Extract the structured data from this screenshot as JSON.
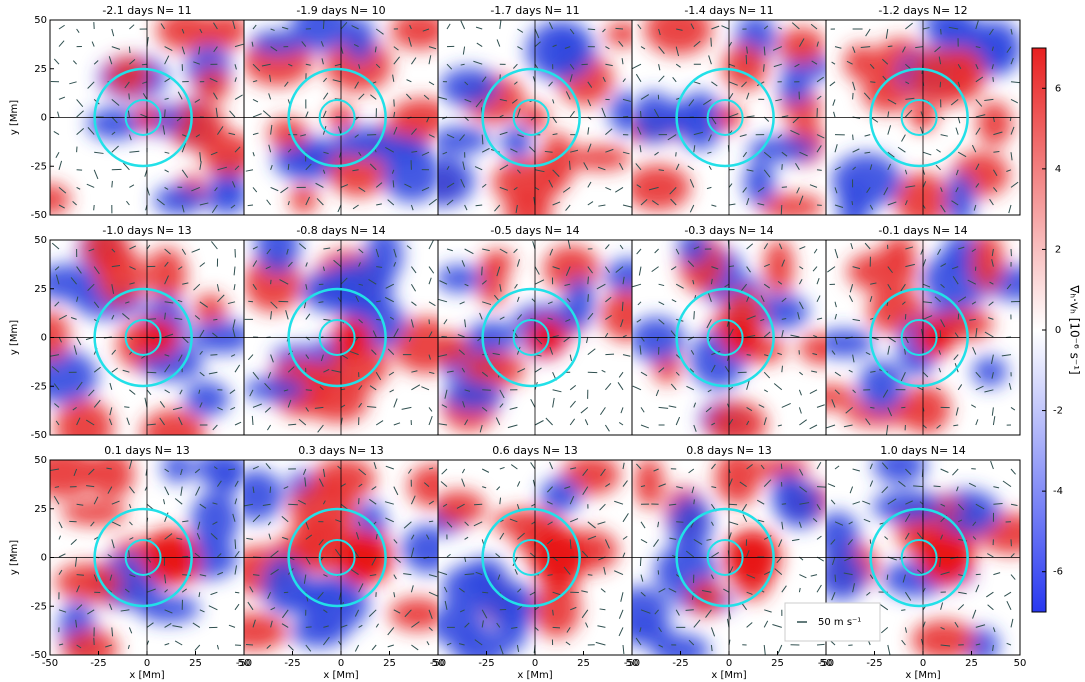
{
  "chart_data": {
    "type": "heatmap",
    "panels": [
      {
        "title": "-2.1 days  N= 11"
      },
      {
        "title": "-1.9 days  N= 10"
      },
      {
        "title": "-1.7 days  N= 11"
      },
      {
        "title": "-1.4 days  N= 11"
      },
      {
        "title": "-1.2 days  N= 12"
      },
      {
        "title": "-1.0 days  N= 13"
      },
      {
        "title": "-0.8 days  N= 14"
      },
      {
        "title": "-0.5 days  N= 14"
      },
      {
        "title": "-0.3 days  N= 14"
      },
      {
        "title": "-0.1 days  N= 14"
      },
      {
        "title": "0.1 days  N= 13"
      },
      {
        "title": "0.3 days  N= 13"
      },
      {
        "title": "0.6 days  N= 13"
      },
      {
        "title": "0.8 days  N= 13"
      },
      {
        "title": "1.0 days  N= 14"
      }
    ],
    "xlabel": "x [Mm]",
    "ylabel": "y [Mm]",
    "xlim": [
      -50,
      50
    ],
    "ylim": [
      -50,
      50
    ],
    "xticks": [
      -50,
      -25,
      0,
      25,
      50
    ],
    "yticks": [
      -50,
      -25,
      0,
      25,
      50
    ],
    "colorbar": {
      "label": "∇ₕ·vₕ  [10⁻⁶ s⁻¹]",
      "lim": [
        -7,
        7
      ],
      "ticks": [
        -6,
        -4,
        -2,
        0,
        2,
        4,
        6
      ]
    },
    "legend": {
      "label": "50 m s⁻¹"
    }
  }
}
